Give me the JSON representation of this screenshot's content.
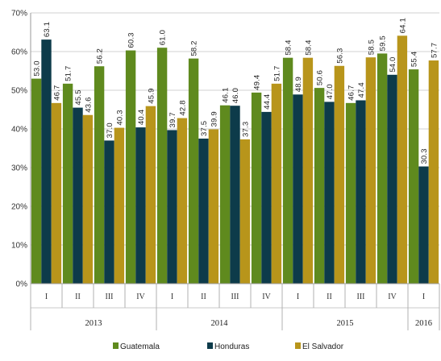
{
  "chart_data": {
    "type": "bar",
    "ylim": [
      0,
      70
    ],
    "y_ticks": [
      "0%",
      "10%",
      "20%",
      "30%",
      "40%",
      "50%",
      "60%",
      "70%"
    ],
    "grid": true,
    "legend_position": "bottom",
    "quarters": [
      "I",
      "II",
      "III",
      "IV",
      "I",
      "II",
      "III",
      "IV",
      "I",
      "II",
      "III",
      "IV",
      "I"
    ],
    "years": [
      {
        "label": "2013",
        "span": 4
      },
      {
        "label": "2014",
        "span": 4
      },
      {
        "label": "2015",
        "span": 4
      },
      {
        "label": "2016",
        "span": 1
      }
    ],
    "series": [
      {
        "name": "Guatemala",
        "color": "#5f8a1e",
        "values": [
          53.0,
          51.7,
          56.2,
          60.3,
          61.0,
          58.2,
          46.1,
          49.4,
          58.4,
          50.6,
          46.7,
          59.5,
          55.4
        ]
      },
      {
        "name": "Honduras",
        "color": "#0d3b4a",
        "values": [
          63.1,
          45.5,
          37.0,
          40.4,
          39.7,
          37.5,
          46.0,
          44.4,
          48.9,
          47.0,
          47.4,
          54.0,
          30.3
        ]
      },
      {
        "name": "El Salvador",
        "color": "#b8951b",
        "values": [
          46.7,
          43.6,
          40.3,
          45.9,
          42.8,
          39.9,
          37.3,
          51.7,
          58.4,
          56.3,
          58.5,
          64.1,
          57.7
        ]
      }
    ]
  }
}
